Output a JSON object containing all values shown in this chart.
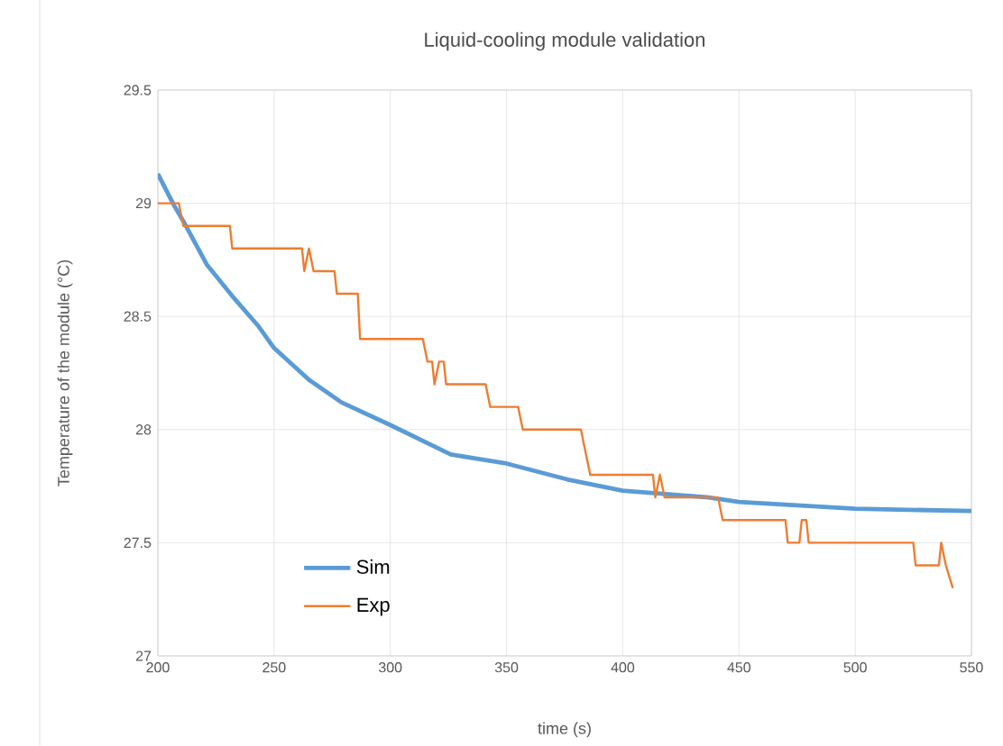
{
  "chart_data": {
    "type": "line",
    "title": "Liquid-cooling module validation",
    "xlabel": "time (s)",
    "ylabel": "Temperature of the module (°C)",
    "xlim": [
      200,
      550
    ],
    "xticks": [
      200,
      250,
      300,
      350,
      400,
      450,
      500,
      550
    ],
    "ylim": [
      27,
      29.5
    ],
    "yticks": [
      27,
      27.5,
      28,
      28.5,
      29,
      29.5
    ],
    "grid": true,
    "legend": "bottom left",
    "marker": "none",
    "series": [
      {
        "name": "Sim",
        "color": "#5b9bd5",
        "x": [
          200,
          207,
          211,
          221,
          232,
          243,
          250,
          265,
          279,
          300,
          326,
          350,
          376,
          400,
          437,
          450,
          500,
          550
        ],
        "values": [
          29.13,
          28.99,
          28.92,
          28.73,
          28.59,
          28.46,
          28.36,
          28.22,
          28.12,
          28.02,
          27.89,
          27.85,
          27.78,
          27.73,
          27.7,
          27.68,
          27.65,
          27.64
        ]
      },
      {
        "name": "Exp",
        "color": "#ed7d31",
        "x": [
          200,
          209,
          211,
          231,
          232,
          262,
          263,
          265,
          267,
          276,
          277,
          286,
          287,
          314,
          316,
          318,
          319,
          321,
          323,
          324,
          341,
          343,
          355,
          357,
          382,
          384,
          386,
          413,
          414,
          416,
          418,
          441,
          443,
          470,
          471,
          476,
          477,
          479,
          480,
          525,
          526,
          536,
          537,
          539,
          542
        ],
        "values": [
          29.0,
          29.0,
          28.9,
          28.9,
          28.8,
          28.8,
          28.7,
          28.8,
          28.7,
          28.7,
          28.6,
          28.6,
          28.4,
          28.4,
          28.3,
          28.3,
          28.2,
          28.3,
          28.3,
          28.2,
          28.2,
          28.1,
          28.1,
          28.0,
          28.0,
          27.9,
          27.8,
          27.8,
          27.7,
          27.8,
          27.7,
          27.7,
          27.6,
          27.6,
          27.5,
          27.5,
          27.6,
          27.6,
          27.5,
          27.5,
          27.4,
          27.4,
          27.5,
          27.4,
          27.3
        ]
      }
    ]
  }
}
